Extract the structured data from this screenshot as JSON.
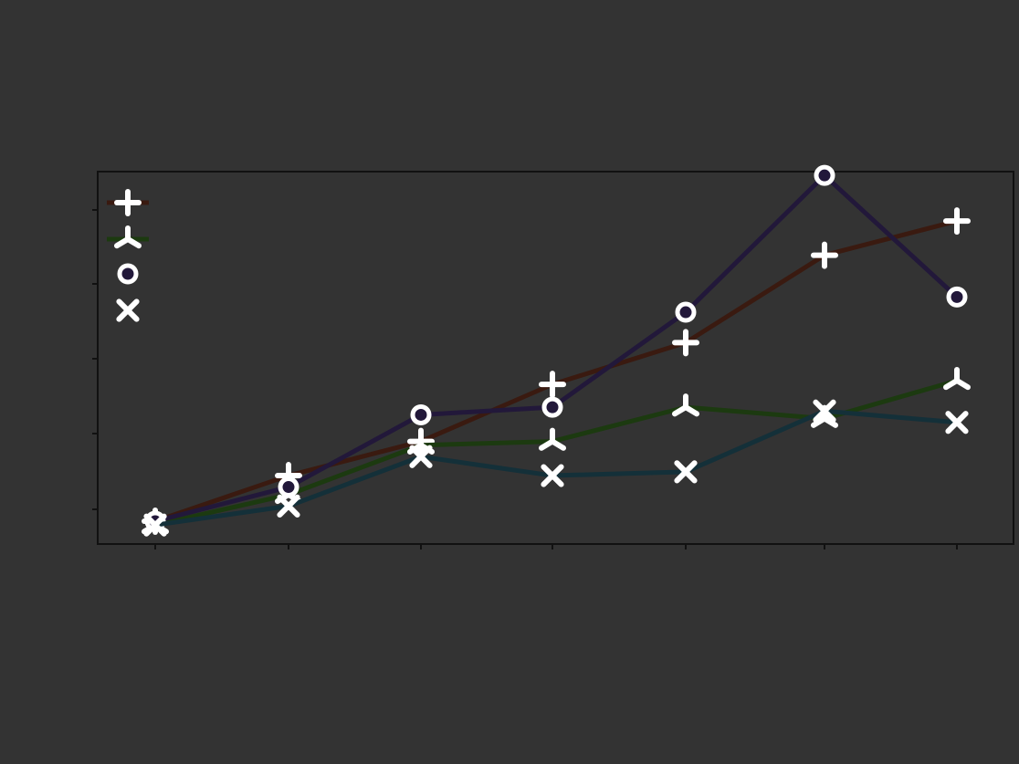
{
  "chart_data": {
    "type": "line",
    "title": "",
    "xlabel": "",
    "ylabel": "",
    "x": [
      1,
      2,
      3,
      4,
      5,
      6,
      7
    ],
    "xtick_labels": [
      "",
      "",
      "",
      "",
      "",
      "",
      ""
    ],
    "ytick_labels": [
      "",
      "",
      "",
      "",
      ""
    ],
    "ylim": [
      -0.2,
      4.7
    ],
    "grid": false,
    "legend_position": "top-left",
    "series": [
      {
        "name": "",
        "color": "#3a1a10",
        "marker": "plus",
        "values": [
          0.1,
          0.7,
          1.15,
          1.9,
          2.45,
          3.6,
          4.05
        ]
      },
      {
        "name": "",
        "color": "#1c3a10",
        "marker": "tri",
        "values": [
          0.05,
          0.45,
          1.1,
          1.15,
          1.6,
          1.45,
          1.95
        ]
      },
      {
        "name": "",
        "color": "#22183a",
        "marker": "circle",
        "values": [
          0.1,
          0.55,
          1.5,
          1.6,
          2.85,
          4.65,
          3.05
        ]
      },
      {
        "name": "",
        "color": "#143039",
        "marker": "x",
        "values": [
          0.05,
          0.3,
          0.95,
          0.7,
          0.75,
          1.55,
          1.4
        ]
      }
    ]
  }
}
